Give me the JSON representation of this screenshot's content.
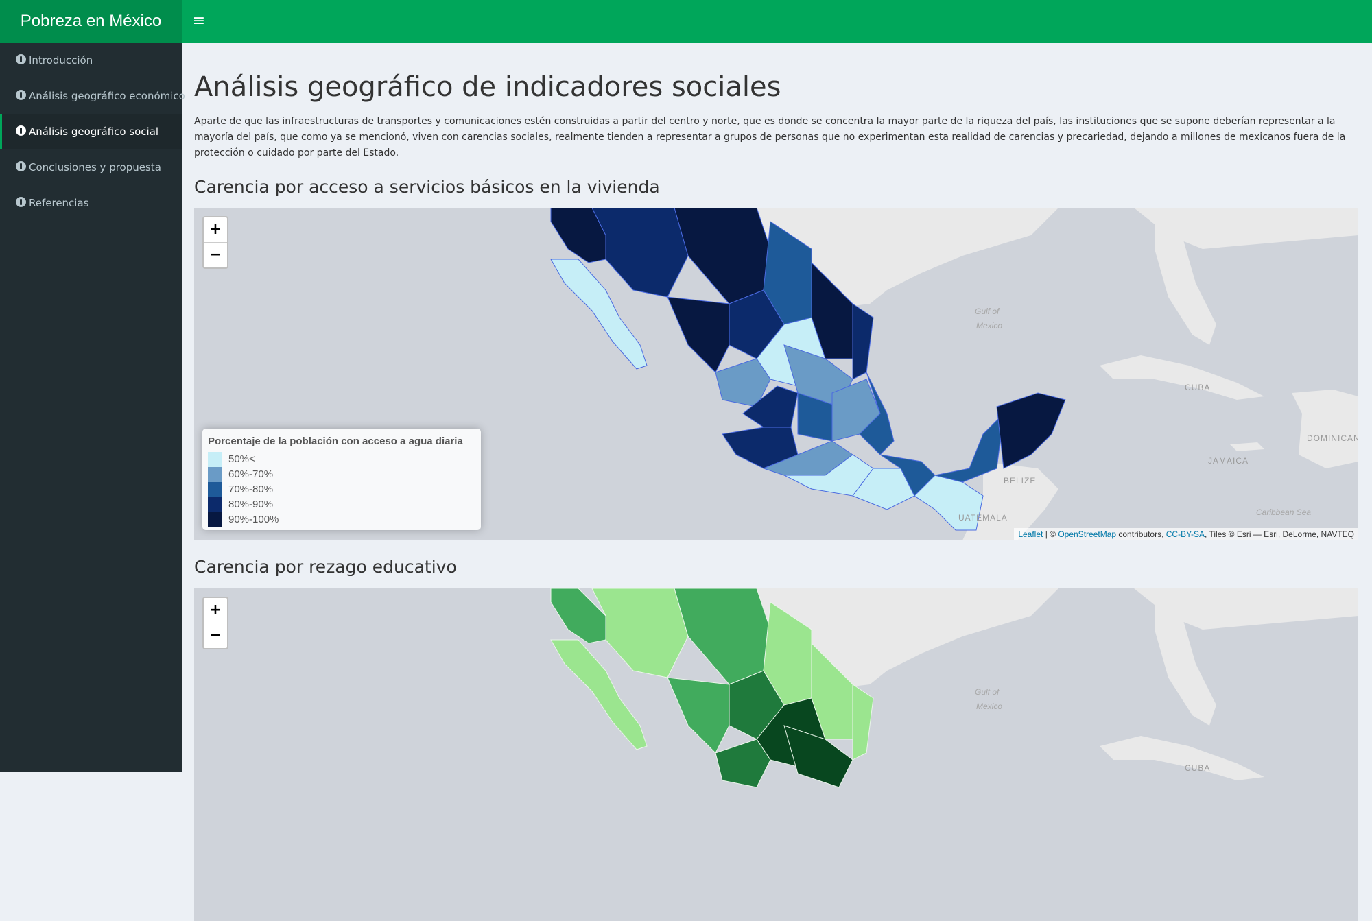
{
  "header": {
    "app_title": "Pobreza en México",
    "menu_toggle": "≡",
    "colors": {
      "header_bg": "#00a65a",
      "logo_bg": "#008d4c",
      "sidebar_bg": "#222d32"
    }
  },
  "sidebar": {
    "items": [
      {
        "label": "Introducción",
        "icon": "info-circle-icon",
        "active": false
      },
      {
        "label": "Análisis geográfico económico",
        "icon": "info-circle-icon",
        "active": false
      },
      {
        "label": "Análisis geográfico social",
        "icon": "info-circle-icon",
        "active": true
      },
      {
        "label": "Conclusiones y propuesta",
        "icon": "info-circle-icon",
        "active": false
      },
      {
        "label": "Referencias",
        "icon": "info-circle-icon",
        "active": false
      }
    ]
  },
  "main": {
    "title": "Análisis geográfico de indicadores sociales",
    "intro": "Aparte de que las infraestructuras de transportes y comunicaciones estén construidas a partir del centro y norte, que es donde se concentra la mayor parte de la riqueza del país, las instituciones que se supone deberían representar a la mayoría del país, que como ya se mencionó, viven con carencias sociales, realmente tienden a representar a grupos de personas que no experimentan esta realidad de carencias y precariedad, dejando a millones de mexicanos fuera de la protección o cuidado por parte del Estado.",
    "sections": [
      {
        "title": "Carencia por acceso a servicios básicos en la vivienda",
        "zoom_in": "+",
        "zoom_out": "−",
        "legend": {
          "title": "Porcentaje de la población con acceso a agua diaria",
          "items": [
            {
              "label": "50%<",
              "color": "#c6eef7"
            },
            {
              "label": "60%-70%",
              "color": "#6a9bc6"
            },
            {
              "label": "70%-80%",
              "color": "#1e5a99"
            },
            {
              "label": "80%-90%",
              "color": "#0c2a6b"
            },
            {
              "label": "90%-100%",
              "color": "#071841"
            }
          ]
        },
        "places": {
          "gulf": [
            "Gulf of",
            "Mexico"
          ],
          "cuba": "CUBA",
          "jamaica": "JAMAICA",
          "dominican": "DOMINICAN",
          "belize": "BELIZE",
          "guatemala": "UATEMALA",
          "caribbean": "Caribbean Sea"
        },
        "attribution": {
          "leaflet": "Leaflet",
          "sep1": " | © ",
          "osm": "OpenStreetMap",
          "sep2": " contributors, ",
          "license": "CC-BY-SA",
          "tiles": ", Tiles © Esri — Esri, DeLorme, NAVTEQ"
        }
      },
      {
        "title": "Carencia por rezago educativo",
        "zoom_in": "+",
        "zoom_out": "−",
        "places": {
          "gulf": [
            "Gulf of",
            "Mexico"
          ],
          "cuba": "CUBA"
        }
      }
    ]
  }
}
